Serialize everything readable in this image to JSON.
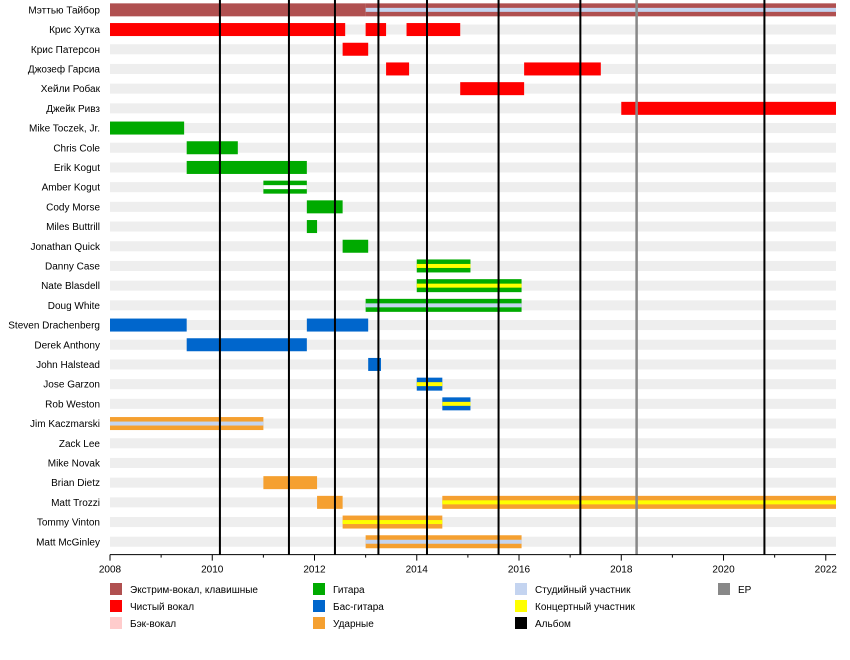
{
  "chart_data": {
    "type": "timeline",
    "xlim": [
      2008,
      2022.2
    ],
    "x_ticks": [
      2008,
      2010,
      2012,
      2014,
      2016,
      2018,
      2020,
      2022
    ],
    "colors": {
      "harsh": "#b05050",
      "clean": "#ff0000",
      "backing": "#ffcccc",
      "guitar": "#00aa00",
      "bass": "#0066cc",
      "drums": "#f5a030",
      "studio": "#c4d4f0",
      "touring": "#ffff00",
      "album": "#000000",
      "ep": "#888888",
      "stripe": "#eeeeee"
    },
    "legend": [
      {
        "key": "harsh",
        "label": "Экстрим-вокал, клавишные"
      },
      {
        "key": "clean",
        "label": "Чистый вокал"
      },
      {
        "key": "backing",
        "label": "Бэк-вокал"
      },
      {
        "key": "guitar",
        "label": "Гитара"
      },
      {
        "key": "bass",
        "label": "Бас-гитара"
      },
      {
        "key": "drums",
        "label": "Ударные"
      },
      {
        "key": "studio",
        "label": "Студийный участник"
      },
      {
        "key": "touring",
        "label": "Концертный участник"
      },
      {
        "key": "album",
        "label": "Альбом"
      },
      {
        "key": "ep",
        "label": "EP"
      }
    ],
    "albums": [
      2010.15,
      2011.5,
      2012.4,
      2013.25,
      2014.2,
      2015.6,
      2017.2,
      2020.8
    ],
    "eps": [
      2018.3
    ],
    "members": [
      {
        "name": "Мэттью Тайбор",
        "bars": [
          {
            "start": 2008,
            "end": 2013,
            "role": "harsh"
          },
          {
            "start": 2013,
            "end": 2022.2,
            "role": "harsh",
            "accent": "studio"
          }
        ]
      },
      {
        "name": "Крис Хутка",
        "bars": [
          {
            "start": 2008,
            "end": 2012.6,
            "role": "clean"
          },
          {
            "start": 2013,
            "end": 2013.4,
            "role": "clean"
          },
          {
            "start": 2013.8,
            "end": 2014.85,
            "role": "clean"
          }
        ]
      },
      {
        "name": "Крис Патерсон",
        "bars": [
          {
            "start": 2012.55,
            "end": 2013.05,
            "role": "clean"
          }
        ]
      },
      {
        "name": "Джозеф Гарсиа",
        "bars": [
          {
            "start": 2013.4,
            "end": 2013.85,
            "role": "clean"
          },
          {
            "start": 2016.1,
            "end": 2017.6,
            "role": "clean"
          }
        ]
      },
      {
        "name": "Хейли Робак",
        "bars": [
          {
            "start": 2014.85,
            "end": 2016.1,
            "role": "clean"
          }
        ]
      },
      {
        "name": "Джейк Ривз",
        "bars": [
          {
            "start": 2018,
            "end": 2022.2,
            "role": "clean"
          }
        ]
      },
      {
        "name": "Mike Toczek, Jr.",
        "bars": [
          {
            "start": 2008,
            "end": 2009.45,
            "role": "guitar"
          }
        ]
      },
      {
        "name": "Chris Cole",
        "bars": [
          {
            "start": 2009.5,
            "end": 2010.5,
            "role": "guitar"
          }
        ]
      },
      {
        "name": "Erik Kogut",
        "bars": [
          {
            "start": 2009.5,
            "end": 2011.85,
            "role": "guitar"
          }
        ]
      },
      {
        "name": "Amber Kogut",
        "bars": [
          {
            "start": 2011,
            "end": 2011.85,
            "role": "guitar",
            "accent": "white"
          }
        ]
      },
      {
        "name": "Cody Morse",
        "bars": [
          {
            "start": 2011.85,
            "end": 2012.55,
            "role": "guitar"
          }
        ]
      },
      {
        "name": "Miles Buttrill",
        "bars": [
          {
            "start": 2011.85,
            "end": 2012.05,
            "role": "guitar"
          }
        ]
      },
      {
        "name": "Jonathan Quick",
        "bars": [
          {
            "start": 2012.55,
            "end": 2013.05,
            "role": "guitar"
          }
        ]
      },
      {
        "name": "Danny Case",
        "bars": [
          {
            "start": 2014,
            "end": 2015.05,
            "role": "guitar",
            "accent": "touring"
          }
        ]
      },
      {
        "name": "Nate Blasdell",
        "bars": [
          {
            "start": 2014,
            "end": 2016.05,
            "role": "guitar",
            "accent": "touring"
          }
        ]
      },
      {
        "name": "Doug White",
        "bars": [
          {
            "start": 2013,
            "end": 2016.05,
            "role": "guitar",
            "accent": "studio"
          }
        ]
      },
      {
        "name": "Steven Drachenberg",
        "bars": [
          {
            "start": 2008,
            "end": 2009.5,
            "role": "bass"
          },
          {
            "start": 2011.85,
            "end": 2013.05,
            "role": "bass"
          }
        ]
      },
      {
        "name": "Derek Anthony",
        "bars": [
          {
            "start": 2009.5,
            "end": 2011.85,
            "role": "bass"
          }
        ]
      },
      {
        "name": "John Halstead",
        "bars": [
          {
            "start": 2013.05,
            "end": 2013.3,
            "role": "bass"
          }
        ]
      },
      {
        "name": "Jose Garzon",
        "bars": [
          {
            "start": 2014,
            "end": 2014.5,
            "role": "bass",
            "accent": "touring"
          }
        ]
      },
      {
        "name": "Rob Weston",
        "bars": [
          {
            "start": 2014.5,
            "end": 2015.05,
            "role": "bass",
            "accent": "touring"
          }
        ]
      },
      {
        "name": "Jim Kaczmarski",
        "bars": [
          {
            "start": 2008,
            "end": 2011,
            "role": "drums",
            "accent": "studio"
          }
        ]
      },
      {
        "name": "Zack Lee",
        "bars": []
      },
      {
        "name": "Mike Novak",
        "bars": []
      },
      {
        "name": "Brian Dietz",
        "bars": [
          {
            "start": 2011,
            "end": 2012.05,
            "role": "drums"
          }
        ]
      },
      {
        "name": "Matt Trozzi",
        "bars": [
          {
            "start": 2012.05,
            "end": 2012.55,
            "role": "drums"
          },
          {
            "start": 2014.5,
            "end": 2022.2,
            "role": "drums",
            "accent": "touring"
          }
        ]
      },
      {
        "name": "Tommy Vinton",
        "bars": [
          {
            "start": 2012.55,
            "end": 2014.5,
            "role": "drums",
            "accent": "touring"
          }
        ]
      },
      {
        "name": "Matt McGinley",
        "bars": [
          {
            "start": 2013,
            "end": 2016.05,
            "role": "drums",
            "accent": "studio"
          }
        ]
      }
    ]
  }
}
